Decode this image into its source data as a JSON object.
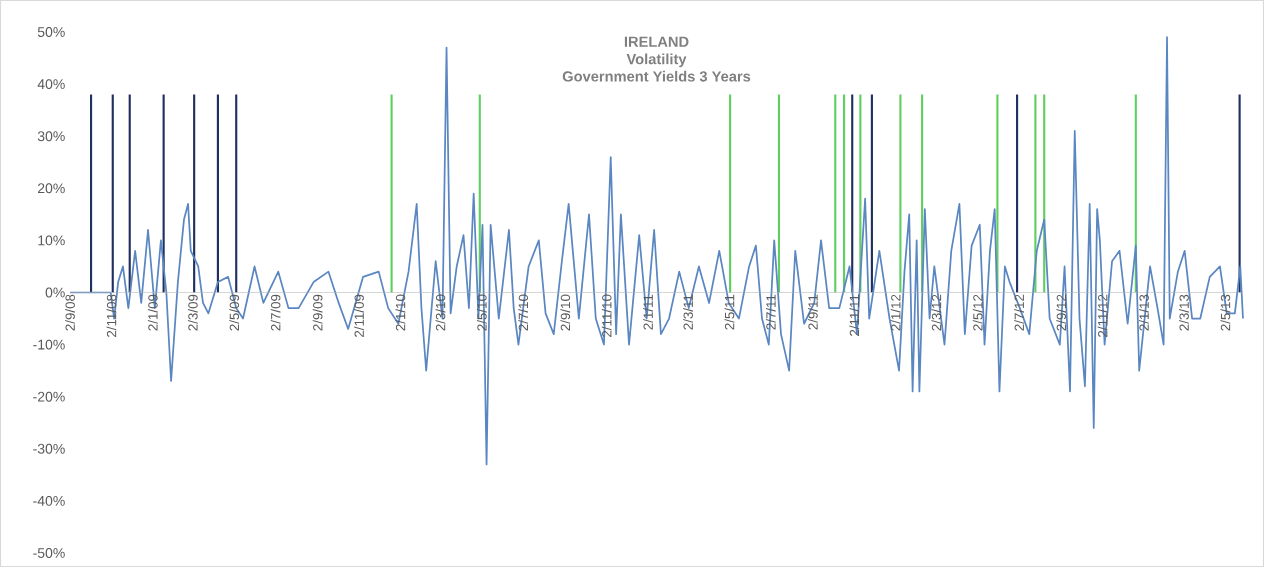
{
  "chart_data": {
    "type": "line",
    "title": "IRELAND",
    "subtitle": "Volatility",
    "annotations": [
      "Government Yields 3 Years"
    ],
    "xlim": [
      "2008-09-02",
      "2013-05-28"
    ],
    "xticks": [
      {
        "value": "2008-09-02",
        "label": "2/9/08"
      },
      {
        "value": "2008-11-02",
        "label": "2/11/08"
      },
      {
        "value": "2009-01-02",
        "label": "2/1/09"
      },
      {
        "value": "2009-03-02",
        "label": "2/3/09"
      },
      {
        "value": "2009-05-02",
        "label": "2/5/09"
      },
      {
        "value": "2009-07-02",
        "label": "2/7/09"
      },
      {
        "value": "2009-09-02",
        "label": "2/9/09"
      },
      {
        "value": "2009-11-02",
        "label": "2/11/09"
      },
      {
        "value": "2010-01-02",
        "label": "2/1/10"
      },
      {
        "value": "2010-03-02",
        "label": "2/3/10"
      },
      {
        "value": "2010-05-02",
        "label": "2/5/10"
      },
      {
        "value": "2010-07-02",
        "label": "2/7/10"
      },
      {
        "value": "2010-09-02",
        "label": "2/9/10"
      },
      {
        "value": "2010-11-02",
        "label": "2/11/10"
      },
      {
        "value": "2011-01-02",
        "label": "2/1/11"
      },
      {
        "value": "2011-03-02",
        "label": "2/3/11"
      },
      {
        "value": "2011-05-02",
        "label": "2/5/11"
      },
      {
        "value": "2011-07-02",
        "label": "2/7/11"
      },
      {
        "value": "2011-09-02",
        "label": "2/9/11"
      },
      {
        "value": "2011-11-02",
        "label": "2/11/11"
      },
      {
        "value": "2012-01-02",
        "label": "2/1/12"
      },
      {
        "value": "2012-03-02",
        "label": "2/3/12"
      },
      {
        "value": "2012-05-02",
        "label": "2/5/12"
      },
      {
        "value": "2012-07-02",
        "label": "2/7/12"
      },
      {
        "value": "2012-09-02",
        "label": "2/9/12"
      },
      {
        "value": "2012-11-02",
        "label": "2/11/12"
      },
      {
        "value": "2013-01-02",
        "label": "2/1/13"
      },
      {
        "value": "2013-03-02",
        "label": "2/3/13"
      },
      {
        "value": "2013-05-02",
        "label": "2/5/13"
      }
    ],
    "ylim": [
      -50,
      50
    ],
    "yticks": [
      {
        "value": -50,
        "label": "-50%"
      },
      {
        "value": -40,
        "label": "-40%"
      },
      {
        "value": -30,
        "label": "-30%"
      },
      {
        "value": -20,
        "label": "-20%"
      },
      {
        "value": -10,
        "label": "-10%"
      },
      {
        "value": 0,
        "label": "0%"
      },
      {
        "value": 10,
        "label": "10%"
      },
      {
        "value": 20,
        "label": "20%"
      },
      {
        "value": 30,
        "label": "30%"
      },
      {
        "value": 40,
        "label": "40%"
      },
      {
        "value": 50,
        "label": "50%"
      }
    ],
    "marker": "none",
    "line_style": "solid",
    "series": [
      {
        "color": "#5a86c2",
        "x": [
          "2008-09-02",
          "2008-11-01",
          "2008-11-06",
          "2008-11-12",
          "2008-11-19",
          "2008-11-27",
          "2008-12-07",
          "2008-12-16",
          "2008-12-26",
          "2009-01-05",
          "2009-01-14",
          "2009-01-22",
          "2009-01-29",
          "2009-02-08",
          "2009-02-17",
          "2009-02-23",
          "2009-02-27",
          "2009-03-10",
          "2009-03-17",
          "2009-03-25",
          "2009-04-08",
          "2009-04-23",
          "2009-05-05",
          "2009-05-15",
          "2009-06-01",
          "2009-06-14",
          "2009-07-06",
          "2009-07-21",
          "2009-08-05",
          "2009-08-27",
          "2009-09-18",
          "2009-10-03",
          "2009-10-17",
          "2009-11-08",
          "2009-12-01",
          "2009-12-15",
          "2009-12-30",
          "2010-01-14",
          "2010-01-26",
          "2010-02-02",
          "2010-02-09",
          "2010-02-23",
          "2010-03-05",
          "2010-03-11",
          "2010-03-17",
          "2010-03-26",
          "2010-04-05",
          "2010-04-13",
          "2010-04-20",
          "2010-04-27",
          "2010-05-03",
          "2010-05-09",
          "2010-05-15",
          "2010-05-27",
          "2010-06-11",
          "2010-06-18",
          "2010-06-25",
          "2010-07-10",
          "2010-07-25",
          "2010-08-04",
          "2010-08-16",
          "2010-08-28",
          "2010-09-07",
          "2010-09-22",
          "2010-10-07",
          "2010-10-17",
          "2010-10-29",
          "2010-11-08",
          "2010-11-16",
          "2010-11-23",
          "2010-12-05",
          "2010-12-20",
          "2010-12-31",
          "2011-01-11",
          "2011-01-21",
          "2011-02-02",
          "2011-02-17",
          "2011-03-03",
          "2011-03-18",
          "2011-04-02",
          "2011-04-17",
          "2011-05-01",
          "2011-05-16",
          "2011-05-31",
          "2011-06-10",
          "2011-06-19",
          "2011-06-29",
          "2011-07-07",
          "2011-07-17",
          "2011-07-29",
          "2011-08-07",
          "2011-08-20",
          "2011-09-04",
          "2011-09-14",
          "2011-09-26",
          "2011-10-11",
          "2011-10-26",
          "2011-11-06",
          "2011-11-18",
          "2011-11-24",
          "2011-12-09",
          "2011-12-24",
          "2012-01-07",
          "2012-01-15",
          "2012-01-22",
          "2012-01-27",
          "2012-02-02",
          "2012-02-06",
          "2012-02-14",
          "2012-02-21",
          "2012-02-28",
          "2012-03-14",
          "2012-03-24",
          "2012-04-05",
          "2012-04-13",
          "2012-04-23",
          "2012-05-05",
          "2012-05-12",
          "2012-05-20",
          "2012-05-27",
          "2012-06-03",
          "2012-06-11",
          "2012-06-18",
          "2012-07-03",
          "2012-07-17",
          "2012-07-28",
          "2012-08-08",
          "2012-08-16",
          "2012-08-31",
          "2012-09-07",
          "2012-09-15",
          "2012-09-22",
          "2012-09-29",
          "2012-10-07",
          "2012-10-14",
          "2012-10-20",
          "2012-10-25",
          "2012-10-29",
          "2012-11-05",
          "2012-11-16",
          "2012-11-27",
          "2012-12-09",
          "2012-12-21",
          "2012-12-26",
          "2013-01-11",
          "2013-01-22",
          "2013-01-31",
          "2013-02-05",
          "2013-02-09",
          "2013-02-21",
          "2013-03-03",
          "2013-03-14",
          "2013-03-26",
          "2013-04-09",
          "2013-04-24",
          "2013-05-04",
          "2013-05-16",
          "2013-05-24",
          "2013-05-28"
        ],
        "values": [
          0,
          0,
          -5,
          2,
          5,
          -3,
          8,
          -2,
          12,
          -3,
          10,
          0,
          -17,
          2,
          14,
          17,
          8,
          5,
          -2,
          -4,
          2,
          3,
          -3,
          -5,
          5,
          -2,
          4,
          -3,
          -3,
          2,
          4,
          -2,
          -7,
          3,
          4,
          -3,
          -6,
          4,
          17,
          -3,
          -15,
          6,
          -5,
          47,
          -4,
          5,
          11,
          -3,
          19,
          -5,
          13,
          -33,
          13,
          -5,
          12,
          -3,
          -10,
          5,
          10,
          -4,
          -8,
          6,
          17,
          -5,
          15,
          -5,
          -10,
          26,
          -8,
          15,
          -10,
          11,
          -5,
          12,
          -8,
          -5,
          4,
          -3,
          5,
          -2,
          8,
          -2,
          -5,
          5,
          9,
          -5,
          -10,
          10,
          -8,
          -15,
          8,
          -6,
          -2,
          10,
          -3,
          -3,
          5,
          -8,
          18,
          -5,
          8,
          -5,
          -15,
          4,
          15,
          -19,
          10,
          -19,
          16,
          -5,
          5,
          -10,
          8,
          17,
          -8,
          9,
          13,
          -10,
          8,
          16,
          -19,
          5,
          2,
          -3,
          -8,
          8,
          14,
          -5,
          -10,
          5,
          -19,
          31,
          -5,
          -18,
          17,
          -26,
          16,
          10,
          -10,
          6,
          8,
          -6,
          9,
          -15,
          5,
          -3,
          -10,
          49,
          -5,
          4,
          8,
          -5,
          -5,
          3,
          5,
          -4,
          -4,
          5,
          -5
        ]
      },
      {
        "type": "bar",
        "color": "#1f2f5e",
        "x": [
          "2008-10-03",
          "2008-11-04",
          "2008-11-29",
          "2009-01-18",
          "2009-03-04",
          "2009-04-08",
          "2009-05-05",
          "2011-10-30",
          "2011-11-28",
          "2012-06-29",
          "2013-05-23"
        ],
        "values": [
          38,
          38,
          38,
          38,
          38,
          38,
          38,
          38,
          38,
          38,
          38
        ]
      },
      {
        "type": "bar",
        "color": "#5fcf5f",
        "x": [
          "2009-12-20",
          "2010-04-29",
          "2011-05-03",
          "2011-07-14",
          "2011-10-05",
          "2011-10-18",
          "2011-11-11",
          "2012-01-09",
          "2012-02-10",
          "2012-05-31",
          "2012-07-26",
          "2012-08-08",
          "2012-12-21"
        ],
        "values": [
          38,
          38,
          38,
          38,
          38,
          38,
          38,
          38,
          38,
          38,
          38,
          38,
          38
        ]
      }
    ]
  }
}
